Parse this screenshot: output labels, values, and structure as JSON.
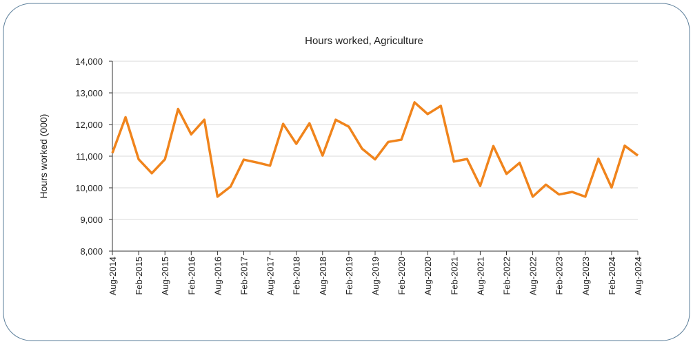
{
  "chart_data": {
    "type": "line",
    "title": "Hours worked,  Agriculture",
    "y_label": "Hours worked (000)",
    "categories": [
      "Aug-2014",
      null,
      "Feb-2015",
      null,
      "Aug-2015",
      null,
      "Feb-2016",
      null,
      "Aug-2016",
      null,
      "Feb-2017",
      null,
      "Aug-2017",
      null,
      "Feb-2018",
      null,
      "Aug-2018",
      null,
      "Feb-2019",
      null,
      "Aug-2019",
      null,
      "Feb-2020",
      null,
      "Aug-2020",
      null,
      "Feb-2021",
      null,
      "Aug-2021",
      null,
      "Feb-2022",
      null,
      "Aug-2022",
      null,
      "Feb-2023",
      null,
      "Aug-2023",
      null,
      "Feb-2024",
      null,
      "Aug-2024"
    ],
    "series": [
      {
        "name": "Hours worked",
        "color": "#f0841c",
        "values": [
          11100,
          12230,
          10900,
          10460,
          10900,
          12490,
          11690,
          12150,
          9720,
          10040,
          10890,
          10800,
          10700,
          12020,
          11390,
          12040,
          11020,
          12150,
          11930,
          11240,
          10900,
          11450,
          11520,
          12700,
          12330,
          12590,
          10830,
          10910,
          10060,
          11320,
          10440,
          10790,
          9720,
          10100,
          9790,
          9870,
          9720,
          10920,
          10010,
          11330,
          11020
        ]
      }
    ],
    "ylim": [
      8000,
      14000
    ],
    "yticks": [
      {
        "value": 8000,
        "label": "8,000"
      },
      {
        "value": 9000,
        "label": "9,000"
      },
      {
        "value": 10000,
        "label": "10,000"
      },
      {
        "value": 11000,
        "label": "11,000"
      },
      {
        "value": 12000,
        "label": "12,000"
      },
      {
        "value": 13000,
        "label": "13,000"
      },
      {
        "value": 14000,
        "label": "14,000"
      }
    ],
    "grid": true
  }
}
